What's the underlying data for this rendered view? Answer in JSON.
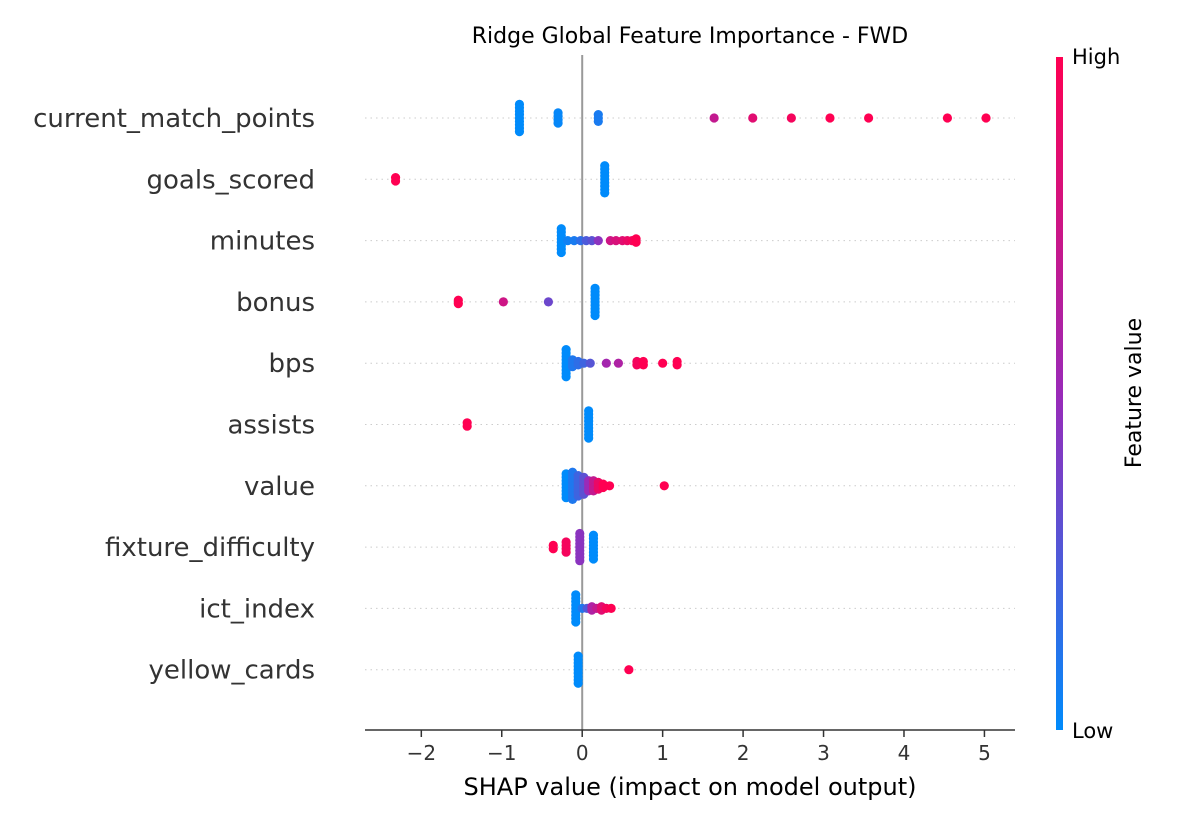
{
  "chart_data": {
    "type": "scatter",
    "subtype": "shap_beeswarm",
    "title": "Ridge Global Feature Importance - FWD",
    "xlabel": "SHAP value (impact on model output)",
    "ylabel": "",
    "xlim": [
      -2.7,
      5.38
    ],
    "xticks": [
      -2,
      -1,
      0,
      1,
      2,
      3,
      4,
      5
    ],
    "xtick_labels": [
      "−2",
      "−1",
      "0",
      "1",
      "2",
      "3",
      "4",
      "5"
    ],
    "zero_line": 0,
    "grid": false,
    "colorbar": {
      "title": "Feature value",
      "high_label": "High",
      "low_label": "Low",
      "low_color": "#008bfb",
      "mid_color": "#9a2ab8",
      "high_color": "#ff0052"
    },
    "features": [
      {
        "name": "current_match_points",
        "points": [
          {
            "x": -0.78,
            "v": 0.0,
            "n": 9
          },
          {
            "x": -0.3,
            "v": 0.02,
            "n": 4
          },
          {
            "x": 0.2,
            "v": 0.08,
            "n": 3
          },
          {
            "x": 1.64,
            "v": 0.7
          },
          {
            "x": 2.12,
            "v": 0.85
          },
          {
            "x": 2.6,
            "v": 0.95
          },
          {
            "x": 3.08,
            "v": 1.0
          },
          {
            "x": 3.56,
            "v": 1.0
          },
          {
            "x": 4.54,
            "v": 1.0
          },
          {
            "x": 5.02,
            "v": 1.0
          }
        ]
      },
      {
        "name": "goals_scored",
        "points": [
          {
            "x": -2.32,
            "v": 1.0,
            "n": 2
          },
          {
            "x": 0.28,
            "v": 0.0,
            "n": 9
          }
        ]
      },
      {
        "name": "minutes",
        "points": [
          {
            "x": -0.26,
            "v": 0.0,
            "n": 8
          },
          {
            "x": -0.18,
            "v": 0.05
          },
          {
            "x": -0.1,
            "v": 0.08
          },
          {
            "x": -0.02,
            "v": 0.15
          },
          {
            "x": 0.05,
            "v": 0.25
          },
          {
            "x": 0.12,
            "v": 0.3
          },
          {
            "x": 0.2,
            "v": 0.45
          },
          {
            "x": 0.35,
            "v": 0.75
          },
          {
            "x": 0.42,
            "v": 0.8
          },
          {
            "x": 0.5,
            "v": 0.85
          },
          {
            "x": 0.56,
            "v": 0.9
          },
          {
            "x": 0.62,
            "v": 0.95
          },
          {
            "x": 0.67,
            "v": 1.0,
            "n": 2
          }
        ]
      },
      {
        "name": "bonus",
        "points": [
          {
            "x": -1.54,
            "v": 1.0,
            "n": 2
          },
          {
            "x": -0.98,
            "v": 0.75
          },
          {
            "x": -0.42,
            "v": 0.35
          },
          {
            "x": 0.16,
            "v": 0.0,
            "n": 9
          }
        ]
      },
      {
        "name": "bps",
        "points": [
          {
            "x": -0.2,
            "v": 0.0,
            "n": 9
          },
          {
            "x": -0.12,
            "v": 0.1,
            "n": 3
          },
          {
            "x": -0.05,
            "v": 0.15,
            "n": 2
          },
          {
            "x": 0.02,
            "v": 0.2
          },
          {
            "x": 0.1,
            "v": 0.28
          },
          {
            "x": 0.3,
            "v": 0.55
          },
          {
            "x": 0.45,
            "v": 0.6
          },
          {
            "x": 0.68,
            "v": 0.95,
            "n": 2
          },
          {
            "x": 0.76,
            "v": 1.0,
            "n": 2
          },
          {
            "x": 1.0,
            "v": 1.0
          },
          {
            "x": 1.18,
            "v": 1.0,
            "n": 2
          }
        ]
      },
      {
        "name": "assists",
        "points": [
          {
            "x": -1.43,
            "v": 1.0,
            "n": 2
          },
          {
            "x": 0.08,
            "v": 0.0,
            "n": 9
          }
        ]
      },
      {
        "name": "value",
        "points": [
          {
            "x": -0.2,
            "v": 0.0,
            "n": 8
          },
          {
            "x": -0.12,
            "v": 0.1,
            "n": 9
          },
          {
            "x": -0.05,
            "v": 0.2,
            "n": 7
          },
          {
            "x": 0.02,
            "v": 0.3,
            "n": 6
          },
          {
            "x": 0.08,
            "v": 0.5,
            "n": 4
          },
          {
            "x": 0.14,
            "v": 0.7,
            "n": 4
          },
          {
            "x": 0.2,
            "v": 0.9,
            "n": 3
          },
          {
            "x": 0.26,
            "v": 1.0,
            "n": 2
          },
          {
            "x": 0.34,
            "v": 1.0
          },
          {
            "x": 1.02,
            "v": 1.0
          }
        ]
      },
      {
        "name": "fixture_difficulty",
        "points": [
          {
            "x": -0.36,
            "v": 1.0,
            "n": 2
          },
          {
            "x": -0.2,
            "v": 0.95,
            "n": 4
          },
          {
            "x": -0.03,
            "v": 0.45,
            "n": 9
          },
          {
            "x": 0.14,
            "v": 0.0,
            "n": 8
          }
        ]
      },
      {
        "name": "ict_index",
        "points": [
          {
            "x": -0.08,
            "v": 0.0,
            "n": 9
          },
          {
            "x": 0.0,
            "v": 0.1
          },
          {
            "x": 0.06,
            "v": 0.25
          },
          {
            "x": 0.12,
            "v": 0.6,
            "n": 2
          },
          {
            "x": 0.18,
            "v": 0.7
          },
          {
            "x": 0.24,
            "v": 0.85,
            "n": 2
          },
          {
            "x": 0.3,
            "v": 0.95
          },
          {
            "x": 0.36,
            "v": 1.0
          }
        ]
      },
      {
        "name": "yellow_cards",
        "points": [
          {
            "x": -0.05,
            "v": 0.0,
            "n": 9
          },
          {
            "x": 0.58,
            "v": 1.0
          }
        ]
      }
    ]
  }
}
